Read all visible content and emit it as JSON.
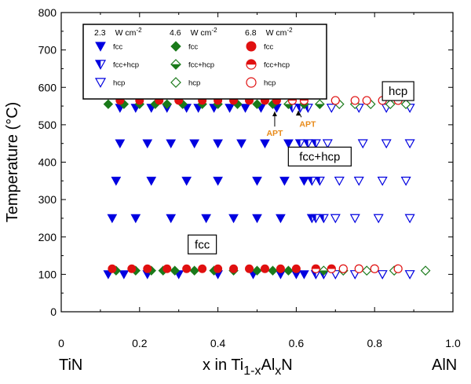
{
  "chart_data": {
    "type": "scatter",
    "xlabel": {
      "main": "x in Ti",
      "sub1": "1-x",
      "mid": "Al",
      "sub2": "x",
      "end": "N"
    },
    "ylabel": "Temperature (°C)",
    "xlim": [
      0,
      1.0
    ],
    "ylim": [
      0,
      800
    ],
    "x_ticks": [
      "0",
      "0.2",
      "0.4",
      "0.6",
      "0.8",
      "1.0"
    ],
    "y_ticks": [
      "0",
      "100",
      "200",
      "300",
      "400",
      "500",
      "600",
      "700",
      "800"
    ],
    "left_endpoint_label": "TiN",
    "right_endpoint_label": "AlN",
    "grid": false,
    "legend_position": "top-left",
    "legend": {
      "groups": [
        {
          "power": "2.3",
          "unit": "W cm",
          "exp": "-2",
          "marker": "triangle",
          "color": "#0000e0"
        },
        {
          "power": "4.6",
          "unit": "W cm",
          "exp": "-2",
          "marker": "diamond",
          "color": "#1a7a1a"
        },
        {
          "power": "6.8",
          "unit": "W cm",
          "exp": "-2",
          "marker": "circle",
          "color": "#e01010"
        }
      ],
      "phases": [
        "fcc",
        "fcc+hcp",
        "hcp"
      ]
    },
    "region_labels": [
      {
        "text": "hcp",
        "x": 0.86,
        "y": 590
      },
      {
        "text": "fcc+hcp",
        "x": 0.66,
        "y": 415
      },
      {
        "text": "fcc",
        "x": 0.36,
        "y": 180
      }
    ],
    "annotations": [
      {
        "text": "APT",
        "x": 0.545,
        "y": 548,
        "text_y": 470
      },
      {
        "text": "APT",
        "x": 0.605,
        "y": 550,
        "text_y": 495
      }
    ],
    "annotation_color": "#e88a18",
    "series": [
      {
        "name": "2.3 fcc",
        "marker": "triangle",
        "fill": "full",
        "color": "#0000e0",
        "x": [
          0.15,
          0.19,
          0.23,
          0.27,
          0.32,
          0.35,
          0.39,
          0.43,
          0.47,
          0.51,
          0.55,
          0.15,
          0.22,
          0.28,
          0.34,
          0.4,
          0.46,
          0.52,
          0.58,
          0.14,
          0.23,
          0.32,
          0.4,
          0.5,
          0.57,
          0.62,
          0.13,
          0.19,
          0.28,
          0.37,
          0.44,
          0.5,
          0.56,
          0.12,
          0.16,
          0.22,
          0.3,
          0.4,
          0.49,
          0.56,
          0.6,
          0.62
        ],
        "y": [
          545,
          545,
          545,
          545,
          545,
          545,
          545,
          545,
          545,
          545,
          545,
          450,
          450,
          450,
          450,
          450,
          450,
          450,
          450,
          350,
          350,
          350,
          350,
          350,
          350,
          350,
          250,
          250,
          250,
          250,
          250,
          250,
          250,
          100,
          100,
          100,
          100,
          100,
          100,
          100,
          100,
          100
        ]
      },
      {
        "name": "2.3 fcc+hcp",
        "marker": "triangle",
        "fill": "half",
        "color": "#0000e0",
        "x": [
          0.59,
          0.61,
          0.63,
          0.61,
          0.63,
          0.65,
          0.64,
          0.66,
          0.64,
          0.65,
          0.67,
          0.65,
          0.67
        ],
        "y": [
          545,
          545,
          545,
          450,
          450,
          450,
          350,
          350,
          250,
          250,
          250,
          100,
          100
        ]
      },
      {
        "name": "2.3 hcp",
        "marker": "triangle",
        "fill": "open",
        "color": "#0000e0",
        "x": [
          0.69,
          0.76,
          0.83,
          0.89,
          0.68,
          0.77,
          0.83,
          0.89,
          0.71,
          0.76,
          0.82,
          0.88,
          0.7,
          0.75,
          0.81,
          0.89,
          0.7,
          0.75,
          0.82,
          0.89
        ],
        "y": [
          545,
          545,
          545,
          545,
          450,
          450,
          450,
          450,
          350,
          350,
          350,
          350,
          250,
          250,
          250,
          250,
          100,
          100,
          100,
          100
        ]
      },
      {
        "name": "4.6 fcc",
        "marker": "diamond",
        "fill": "full",
        "color": "#1a7a1a",
        "x": [
          0.12,
          0.16,
          0.2,
          0.24,
          0.27,
          0.31,
          0.36,
          0.4,
          0.45,
          0.5,
          0.54,
          0.14,
          0.19,
          0.23,
          0.26,
          0.29,
          0.34,
          0.39,
          0.44,
          0.5,
          0.54,
          0.58
        ],
        "y": [
          555,
          555,
          555,
          555,
          555,
          555,
          555,
          555,
          555,
          555,
          555,
          110,
          110,
          110,
          110,
          110,
          110,
          110,
          110,
          110,
          110,
          110
        ]
      },
      {
        "name": "4.6 fcc+hcp",
        "marker": "diamond",
        "fill": "half",
        "color": "#1a7a1a",
        "x": [
          0.58,
          0.62,
          0.66,
          0.67
        ],
        "y": [
          555,
          555,
          555,
          110
        ]
      },
      {
        "name": "4.6 hcp",
        "marker": "diamond",
        "fill": "open",
        "color": "#1a7a1a",
        "x": [
          0.71,
          0.75,
          0.79,
          0.84,
          0.88,
          0.72,
          0.78,
          0.85,
          0.93
        ],
        "y": [
          555,
          555,
          555,
          555,
          555,
          110,
          110,
          110,
          110
        ]
      },
      {
        "name": "6.8 fcc",
        "marker": "circle",
        "fill": "full",
        "color": "#e01010",
        "x": [
          0.15,
          0.2,
          0.25,
          0.3,
          0.36,
          0.4,
          0.44,
          0.48,
          0.52,
          0.55,
          0.13,
          0.18,
          0.22,
          0.27,
          0.32,
          0.36,
          0.4,
          0.44,
          0.48,
          0.52,
          0.56,
          0.6
        ],
        "y": [
          565,
          565,
          565,
          565,
          565,
          565,
          565,
          565,
          565,
          565,
          115,
          115,
          115,
          115,
          115,
          115,
          115,
          115,
          115,
          115,
          115,
          115
        ]
      },
      {
        "name": "6.8 fcc+hcp",
        "marker": "circle",
        "fill": "half",
        "color": "#e01010",
        "x": [
          0.59,
          0.62,
          0.65,
          0.69
        ],
        "y": [
          565,
          565,
          115,
          115
        ]
      },
      {
        "name": "6.8 hcp",
        "marker": "circle",
        "fill": "open",
        "color": "#e01010",
        "x": [
          0.7,
          0.75,
          0.78,
          0.82,
          0.86,
          0.72,
          0.76,
          0.8,
          0.86
        ],
        "y": [
          565,
          565,
          565,
          565,
          565,
          115,
          115,
          115,
          115
        ]
      }
    ]
  }
}
